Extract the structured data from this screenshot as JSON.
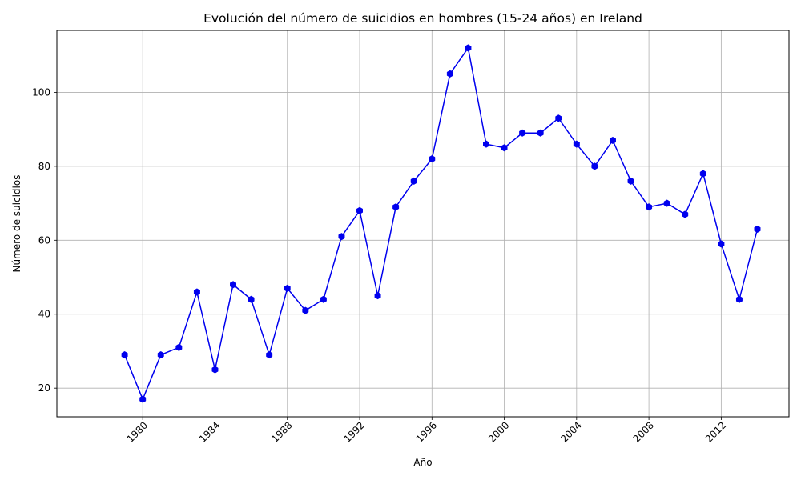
{
  "chart_data": {
    "type": "line",
    "title": "Evolución del número de suicidios en hombres (15-24 años) en Ireland",
    "xlabel": "Año",
    "ylabel": "Número de suicidios",
    "xlim": [
      1975.25,
      2015.75
    ],
    "ylim": [
      12.25,
      116.75
    ],
    "x_ticks": [
      1980,
      1984,
      1988,
      1992,
      1996,
      2000,
      2004,
      2008,
      2012
    ],
    "y_ticks": [
      20,
      40,
      60,
      80,
      100
    ],
    "grid": true,
    "line_color": "#0000ee",
    "marker": "hexagon",
    "series": [
      {
        "x": [
          1979,
          1980,
          1981,
          1982,
          1983,
          1984,
          1985,
          1986,
          1987,
          1988,
          1989,
          1990,
          1991,
          1992,
          1993,
          1994,
          1995,
          1996,
          1997,
          1998,
          1999,
          2000,
          2001,
          2002,
          2003,
          2004,
          2005,
          2006,
          2007,
          2008,
          2009,
          2010,
          2011,
          2012,
          2013,
          2014
        ],
        "values": [
          29,
          17,
          29,
          31,
          46,
          25,
          48,
          44,
          29,
          47,
          41,
          44,
          61,
          68,
          45,
          69,
          76,
          82,
          105,
          112,
          86,
          85,
          89,
          89,
          93,
          86,
          80,
          87,
          76,
          69,
          70,
          67,
          78,
          59,
          44,
          63
        ]
      }
    ]
  }
}
